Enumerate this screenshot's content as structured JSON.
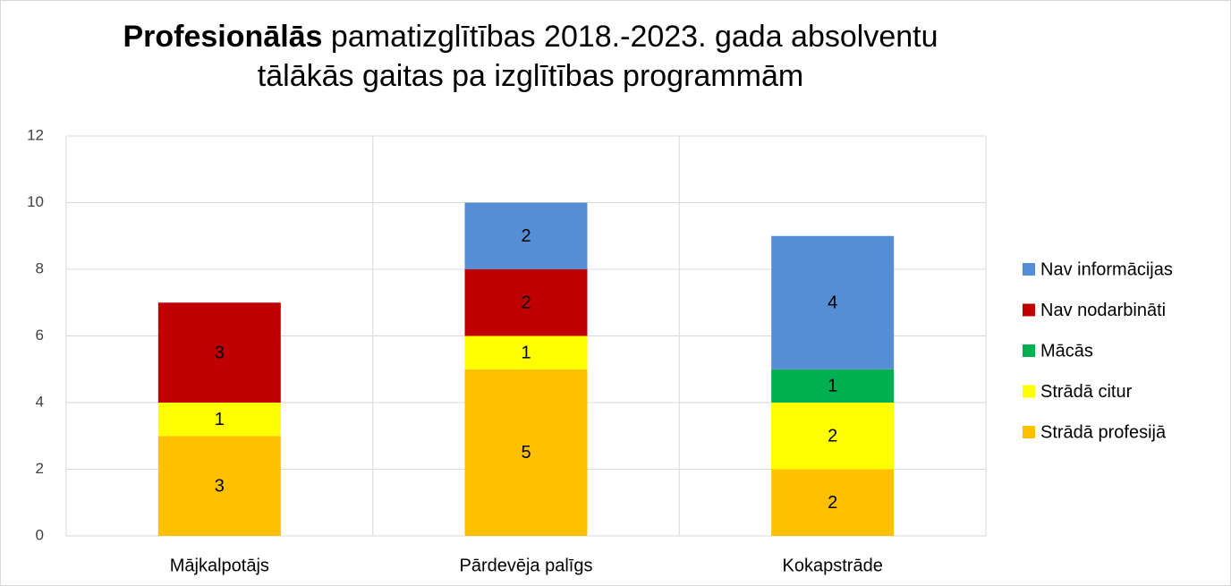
{
  "chart_data": {
    "type": "stacked_bar",
    "title": {
      "bold": "Profesionālās",
      "lines": [
        "pamatizglītības 2018.-2023. gada absolventu",
        "tālākās gaitas pa izglītības programmām"
      ]
    },
    "categories": [
      "Mājkalpotājs",
      "Pārdevēja palīgs",
      "Kokapstrāde"
    ],
    "series": [
      {
        "name": "Strādā profesijā",
        "color": "#FFC000",
        "values": [
          3,
          5,
          2
        ]
      },
      {
        "name": "Strādā citur",
        "color": "#FFFF00",
        "values": [
          1,
          1,
          2
        ]
      },
      {
        "name": "Mācās",
        "color": "#00B050",
        "values": [
          null,
          null,
          1
        ]
      },
      {
        "name": "Nav nodarbināti",
        "color": "#C00000",
        "values": [
          3,
          2,
          null
        ]
      },
      {
        "name": "Nav informācijas",
        "color": "#558ED5",
        "values": [
          null,
          2,
          4
        ]
      }
    ],
    "ylim": [
      0,
      12
    ],
    "yticks": [
      0,
      2,
      4,
      6,
      8,
      10,
      12
    ],
    "grid": true,
    "legend": "right"
  }
}
